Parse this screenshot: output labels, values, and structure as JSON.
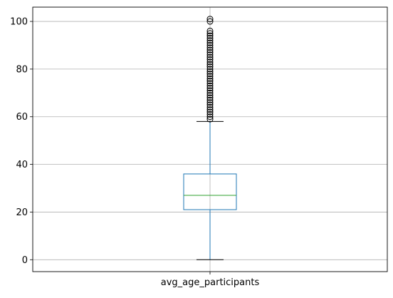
{
  "chart_data": {
    "type": "boxplot",
    "title": "",
    "xlabel": "",
    "ylabel": "",
    "categories": [
      "avg_age_participants"
    ],
    "ylim": [
      -5,
      106
    ],
    "yticks": [
      0,
      20,
      40,
      60,
      80,
      100
    ],
    "ytick_labels": [
      "0",
      "20",
      "40",
      "60",
      "80",
      "100"
    ],
    "grid": true,
    "boxes": [
      {
        "name": "avg_age_participants",
        "whisker_low": 0,
        "q1": 21,
        "median": 27,
        "q3": 36,
        "whisker_high": 58,
        "outliers": [
          59,
          60,
          61,
          62,
          63,
          64,
          65,
          66,
          67,
          68,
          69,
          70,
          71,
          72,
          73,
          74,
          75,
          76,
          77,
          78,
          79,
          80,
          81,
          82,
          83,
          84,
          85,
          86,
          87,
          88,
          89,
          90,
          91,
          92,
          93,
          94,
          95,
          96,
          100,
          101
        ]
      }
    ],
    "colors": {
      "box": "#1f77b4",
      "median": "#2ca02c",
      "whisker": "#1f77b4",
      "cap": "#000000",
      "flier": "#000000",
      "grid": "#b0b0b0",
      "axes": "#000000"
    }
  }
}
